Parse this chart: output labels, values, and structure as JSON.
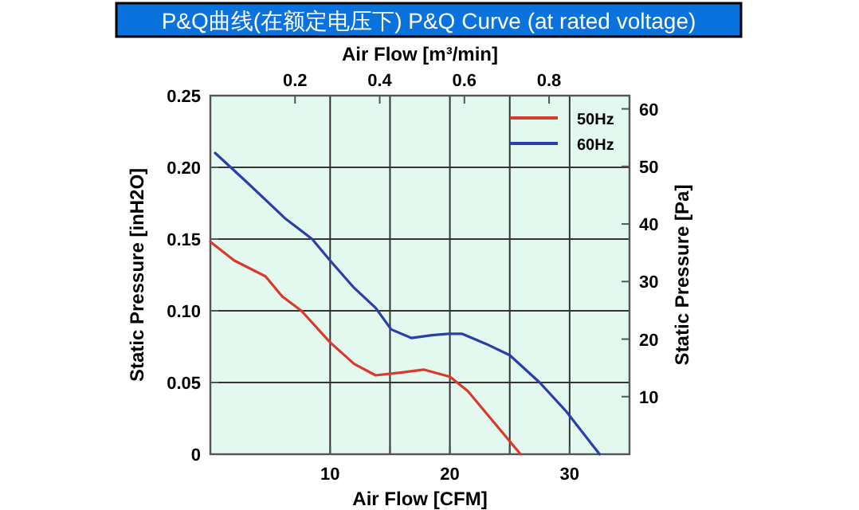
{
  "chart_data": {
    "type": "line",
    "title": "P&Q曲线(在额定电压下)  P&Q Curve  (at rated voltage)",
    "xlabel": "Air Flow  [CFM]",
    "x2label": "Air Flow  [m³/min]",
    "ylabel": "Static Pressure  [inH2O]",
    "y2label": "Static Pressure  [Pa]",
    "series": [
      {
        "name": "50Hz",
        "color": "#d83a2e",
        "x": [
          0,
          2,
          4.6,
          6,
          7.6,
          10,
          12,
          13.8,
          16,
          17.8,
          20,
          21.5,
          23,
          24.5,
          25.9
        ],
        "values": [
          0.148,
          0.135,
          0.124,
          0.11,
          0.1,
          0.078,
          0.063,
          0.055,
          0.057,
          0.059,
          0.054,
          0.044,
          0.029,
          0.014,
          0
        ]
      },
      {
        "name": "60Hz",
        "color": "#2a3fa8",
        "x": [
          0.4,
          3,
          6.3,
          8.5,
          10,
          12,
          13.8,
          15.1,
          16.8,
          18.5,
          19.9,
          21,
          23,
          25,
          27.5,
          29.7,
          32.5
        ],
        "values": [
          0.21,
          0.19,
          0.164,
          0.15,
          0.135,
          0.116,
          0.102,
          0.087,
          0.081,
          0.083,
          0.084,
          0.084,
          0.077,
          0.069,
          0.05,
          0.03,
          0
        ]
      }
    ],
    "xlim": [
      0,
      35
    ],
    "xticks": [
      10,
      {
        "value": 15,
        "label": null
      },
      20,
      {
        "value": 25,
        "label": null
      },
      30
    ],
    "ylim": [
      0,
      0.25
    ],
    "yticks": [
      0,
      0.05,
      {
        "value": 0.1,
        "label": "0.10"
      },
      0.15,
      {
        "value": 0.2,
        "label": "0.20"
      },
      0.25
    ],
    "x2lim": [
      0,
      0.99
    ],
    "x2ticks": [
      0.2,
      0.4,
      0.6,
      0.8
    ],
    "y2lim": [
      0,
      62.3
    ],
    "y2ticks": [
      10,
      20,
      30,
      40,
      50,
      60
    ],
    "grid": true,
    "legend": "top right"
  }
}
